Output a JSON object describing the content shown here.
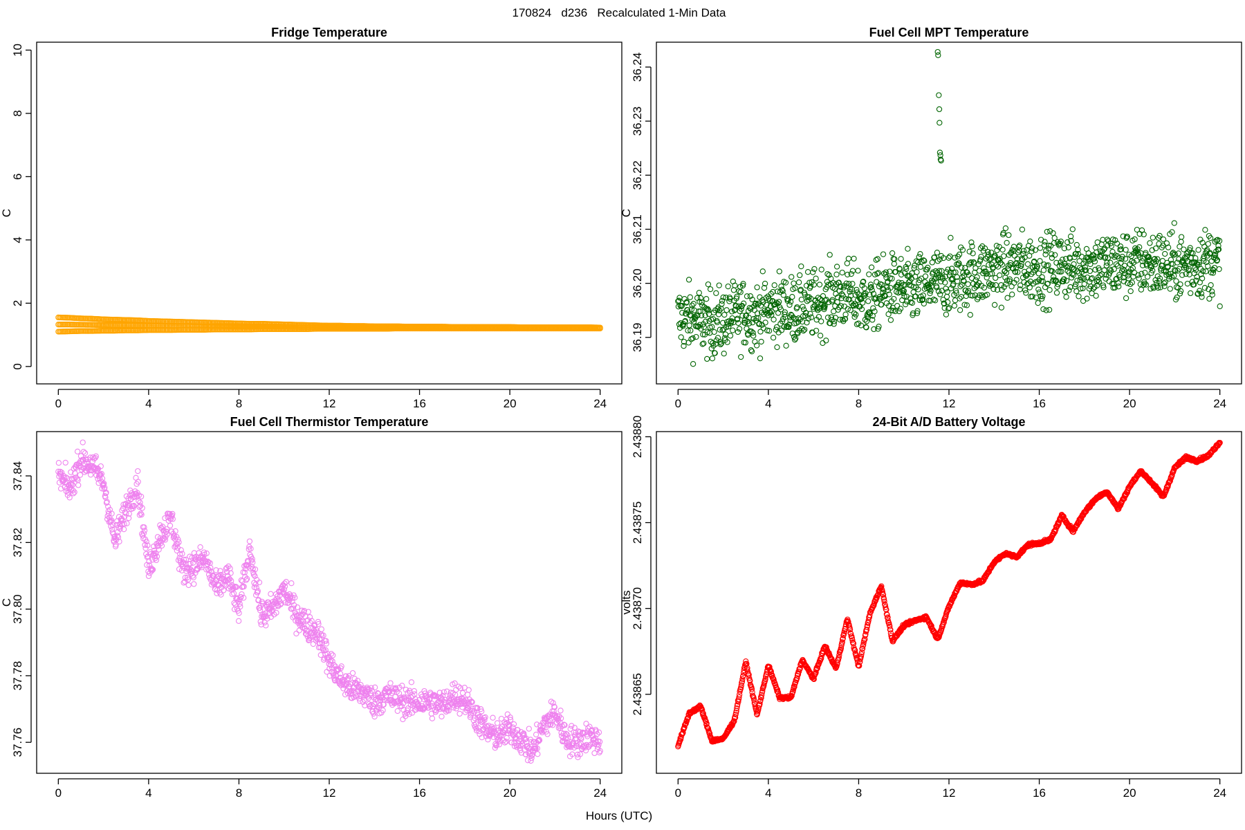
{
  "figure": {
    "main_title": "170824   d236   Recalculated 1-Min Data",
    "x_axis_label": "Hours (UTC)"
  },
  "chart_data": [
    {
      "type": "scatter",
      "title": "Fridge Temperature",
      "xlabel": "Hours (UTC)",
      "ylabel": "C",
      "color": "#FFA500",
      "xlim": [
        -0.96,
        24.96
      ],
      "ylim": [
        -0.55,
        10.25
      ],
      "xticks": [
        "0",
        "4",
        "8",
        "12",
        "16",
        "20",
        "24"
      ],
      "yticks": [
        "0",
        "2",
        "4",
        "6",
        "8",
        "10"
      ],
      "x": [
        0,
        0.5,
        1,
        1.5,
        2,
        2.5,
        3,
        3.5,
        4,
        4.5,
        5,
        5.5,
        6,
        6.5,
        7,
        7.5,
        8,
        8.5,
        9,
        9.5,
        10,
        10.5,
        11,
        11.5,
        12,
        12.5,
        13,
        13.5,
        14,
        14.5,
        15,
        15.5,
        16,
        16.5,
        17,
        17.5,
        18,
        18.5,
        19,
        19.5,
        20,
        20.5,
        21,
        21.5,
        22,
        22.5,
        23,
        23.5,
        24
      ],
      "y_upper": [
        1.55,
        1.54,
        1.52,
        1.51,
        1.49,
        1.48,
        1.47,
        1.46,
        1.44,
        1.43,
        1.42,
        1.41,
        1.4,
        1.39,
        1.38,
        1.37,
        1.36,
        1.35,
        1.35,
        1.34,
        1.33,
        1.32,
        1.31,
        1.3,
        1.29,
        1.29,
        1.28,
        1.28,
        1.27,
        1.27,
        1.27,
        1.26,
        1.26,
        1.26,
        1.26,
        1.25,
        1.25,
        1.25,
        1.25,
        1.25,
        1.25,
        1.24,
        1.24,
        1.24,
        1.24,
        1.24,
        1.24,
        1.24,
        1.23
      ],
      "y_lower": [
        1.1,
        1.11,
        1.12,
        1.12,
        1.13,
        1.13,
        1.14,
        1.14,
        1.15,
        1.15,
        1.15,
        1.16,
        1.16,
        1.16,
        1.17,
        1.17,
        1.17,
        1.17,
        1.18,
        1.18,
        1.18,
        1.18,
        1.18,
        1.19,
        1.19,
        1.19,
        1.19,
        1.19,
        1.19,
        1.19,
        1.2,
        1.2,
        1.2,
        1.2,
        1.2,
        1.2,
        1.2,
        1.2,
        1.2,
        1.2,
        1.2,
        1.2,
        1.2,
        1.2,
        1.2,
        1.2,
        1.2,
        1.2,
        1.2
      ]
    },
    {
      "type": "scatter",
      "title": "Fuel Cell MPT Temperature",
      "xlabel": "Hours (UTC)",
      "ylabel": "C",
      "color": "#006400",
      "xlim": [
        -0.96,
        24.96
      ],
      "ylim": [
        36.1814,
        36.2446
      ],
      "xticks": [
        "0",
        "4",
        "8",
        "12",
        "16",
        "20",
        "24"
      ],
      "yticks": [
        "36.19",
        "36.20",
        "36.21",
        "36.22",
        "36.23",
        "36.24"
      ],
      "x": [
        0,
        0.5,
        1,
        1.5,
        2,
        2.5,
        3,
        3.5,
        4,
        4.5,
        5,
        5.5,
        6,
        6.5,
        7,
        7.5,
        8,
        8.5,
        9,
        9.5,
        10,
        10.5,
        11,
        11.5,
        12,
        12.5,
        13,
        13.5,
        14,
        14.5,
        15,
        15.5,
        16,
        16.5,
        17,
        17.5,
        18,
        18.5,
        19,
        19.5,
        20,
        20.5,
        21,
        21.5,
        22,
        22.5,
        23,
        23.5,
        24
      ],
      "y_trend": [
        36.1935,
        36.1935,
        36.193,
        36.1925,
        36.193,
        36.194,
        36.1945,
        36.194,
        36.195,
        36.1955,
        36.195,
        36.1955,
        36.196,
        36.197,
        36.1975,
        36.198,
        36.197,
        36.1965,
        36.1985,
        36.199,
        36.1985,
        36.199,
        36.1995,
        36.2,
        36.2005,
        36.201,
        36.2015,
        36.202,
        36.2025,
        36.203,
        36.203,
        36.203,
        36.2025,
        36.203,
        36.2035,
        36.203,
        36.203,
        36.203,
        36.2035,
        36.2035,
        36.2035,
        36.204,
        36.2035,
        36.2035,
        36.203,
        36.2035,
        36.2035,
        36.204,
        36.204
      ],
      "spread": 0.0045,
      "outliers": [
        {
          "x": 11.5,
          "y": 36.2428
        },
        {
          "x": 11.52,
          "y": 36.2422
        },
        {
          "x": 11.55,
          "y": 36.2348
        },
        {
          "x": 11.57,
          "y": 36.2322
        },
        {
          "x": 11.58,
          "y": 36.2297
        },
        {
          "x": 11.6,
          "y": 36.2242
        },
        {
          "x": 11.62,
          "y": 36.2237
        },
        {
          "x": 11.63,
          "y": 36.2229
        },
        {
          "x": 11.65,
          "y": 36.2227
        }
      ]
    },
    {
      "type": "scatter",
      "title": "Fuel Cell Thermistor Temperature",
      "xlabel": "Hours (UTC)",
      "ylabel": "C",
      "color": "#EE82EE",
      "xlim": [
        -0.96,
        24.96
      ],
      "ylim": [
        37.7507,
        37.8533
      ],
      "xticks": [
        "0",
        "4",
        "8",
        "12",
        "16",
        "20",
        "24"
      ],
      "yticks": [
        "37.76",
        "37.78",
        "37.80",
        "37.82",
        "37.84"
      ],
      "x": [
        0,
        0.5,
        1,
        1.5,
        2,
        2.5,
        3,
        3.5,
        4,
        4.5,
        5,
        5.5,
        6,
        6.5,
        7,
        7.5,
        8,
        8.5,
        9,
        9.5,
        10,
        10.5,
        11,
        11.5,
        12,
        12.5,
        13,
        13.5,
        14,
        14.5,
        15,
        15.5,
        16,
        16.5,
        17,
        17.5,
        18,
        18.5,
        19,
        19.5,
        20,
        20.5,
        21,
        21.5,
        22,
        22.5,
        23,
        23.5,
        24
      ],
      "y_trend": [
        37.84,
        37.836,
        37.845,
        37.843,
        37.838,
        37.82,
        37.83,
        37.838,
        37.812,
        37.822,
        37.827,
        37.812,
        37.813,
        37.815,
        37.806,
        37.81,
        37.8,
        37.818,
        37.798,
        37.8,
        37.806,
        37.799,
        37.795,
        37.793,
        37.784,
        37.779,
        37.776,
        37.775,
        37.772,
        37.774,
        37.773,
        37.772,
        37.772,
        37.772,
        37.771,
        37.774,
        37.773,
        37.768,
        37.763,
        37.762,
        37.764,
        37.761,
        37.757,
        37.765,
        37.769,
        37.761,
        37.76,
        37.762,
        37.76
      ],
      "spread": 0.0032
    },
    {
      "type": "scatter",
      "title": "24-Bit A/D Battery Voltage",
      "xlabel": "Hours (UTC)",
      "ylabel": "volts",
      "color": "#FF0000",
      "xlim": [
        -0.96,
        24.96
      ],
      "ylim": [
        2.438604,
        2.438803
      ],
      "xticks": [
        "0",
        "4",
        "8",
        "12",
        "16",
        "20",
        "24"
      ],
      "yticks": [
        "2.43865",
        "2.43870",
        "2.43875",
        "2.43880"
      ],
      "x": [
        0,
        0.5,
        1,
        1.5,
        2,
        2.5,
        3,
        3.5,
        4,
        4.5,
        5,
        5.5,
        6,
        6.5,
        7,
        7.5,
        8,
        8.5,
        9,
        9.5,
        10,
        10.5,
        11,
        11.5,
        12,
        12.5,
        13,
        13.5,
        14,
        14.5,
        15,
        15.5,
        16,
        16.5,
        17,
        17.5,
        18,
        18.5,
        19,
        19.5,
        20,
        20.5,
        21,
        21.5,
        22,
        22.5,
        23,
        23.5,
        24
      ],
      "y_trend": [
        2.43862,
        2.438639,
        2.438643,
        2.438623,
        2.438624,
        2.438635,
        2.438669,
        2.438638,
        2.438667,
        2.438648,
        2.438648,
        2.43867,
        2.438659,
        2.438678,
        2.438665,
        2.438694,
        2.438666,
        2.438697,
        2.438713,
        2.438681,
        2.43869,
        2.438693,
        2.438695,
        2.438682,
        2.438701,
        2.438715,
        2.438714,
        2.438716,
        2.438727,
        2.438732,
        2.43873,
        2.438737,
        2.438738,
        2.43874,
        2.438754,
        2.438745,
        2.438756,
        2.438764,
        2.438768,
        2.438758,
        2.438771,
        2.43878,
        2.438773,
        2.438765,
        2.438782,
        2.438788,
        2.438786,
        2.438789,
        2.438797
      ],
      "spread": 6e-07
    }
  ]
}
